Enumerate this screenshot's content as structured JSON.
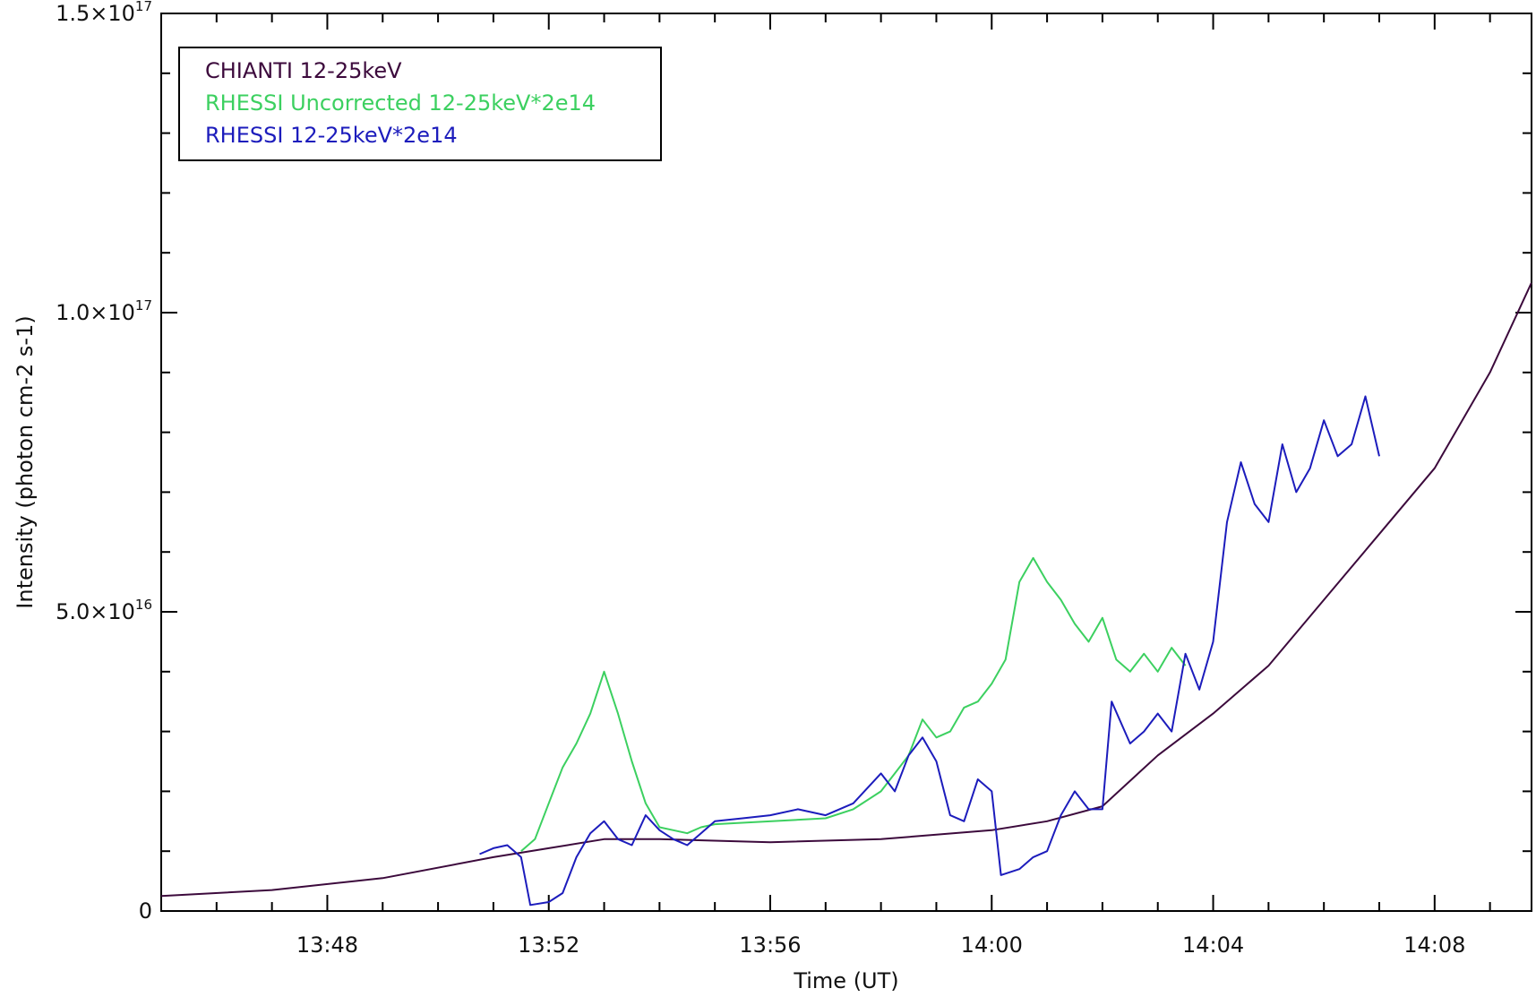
{
  "chart_data": {
    "type": "line",
    "title": "",
    "xlabel": "Time (UT)",
    "ylabel": "Intensity (photon cm-2 s-1)",
    "x_unit": "UT time (HH:MM)",
    "xlim": [
      "13:45:00",
      "14:09:45"
    ],
    "ylim": [
      0,
      1.5e+17
    ],
    "x_ticks": [
      "13:48",
      "13:52",
      "13:56",
      "14:00",
      "14:04",
      "14:08"
    ],
    "y_ticks": [
      {
        "value": 0,
        "mantissa": "0",
        "exp": ""
      },
      {
        "value": 5e+16,
        "mantissa": "5.0×10",
        "exp": "16"
      },
      {
        "value": 1e+17,
        "mantissa": "1.0×10",
        "exp": "17"
      },
      {
        "value": 1.5e+17,
        "mantissa": "1.5×10",
        "exp": "17"
      }
    ],
    "grid": false,
    "legend_position": "top-left",
    "series": [
      {
        "name": "CHIANTI 12-25keV",
        "color": "#3c0a3c",
        "x": [
          "13:45:00",
          "13:47:00",
          "13:49:00",
          "13:51:00",
          "13:52:00",
          "13:53:00",
          "13:54:00",
          "13:56:00",
          "13:58:00",
          "14:00:00",
          "14:01:00",
          "14:02:00",
          "14:03:00",
          "14:04:00",
          "14:05:00",
          "14:06:00",
          "14:07:00",
          "14:08:00",
          "14:09:00",
          "14:09:45"
        ],
        "values": [
          2500000000000000.0,
          3500000000000000.0,
          5500000000000000.0,
          9000000000000000.0,
          1.05e+16,
          1.2e+16,
          1.2e+16,
          1.15e+16,
          1.2e+16,
          1.35e+16,
          1.5e+16,
          1.75e+16,
          2.6e+16,
          3.3e+16,
          4.1e+16,
          5.2e+16,
          6.3e+16,
          7.4e+16,
          9e+16,
          1.05e+17
        ]
      },
      {
        "name": "RHESSI Uncorrected 12-25keV*2e14",
        "color": "#3cd060",
        "x": [
          "13:51:30",
          "13:51:45",
          "13:52:00",
          "13:52:15",
          "13:52:30",
          "13:52:45",
          "13:53:00",
          "13:53:15",
          "13:53:30",
          "13:53:45",
          "13:54:00",
          "13:54:15",
          "13:54:30",
          "13:54:45",
          "13:55:00",
          "13:57:00",
          "13:57:30",
          "13:58:00",
          "13:58:15",
          "13:58:30",
          "13:58:45",
          "13:59:00",
          "13:59:15",
          "13:59:30",
          "13:59:45",
          "14:00:00",
          "14:00:15",
          "14:00:30",
          "14:00:45",
          "14:01:00",
          "14:01:15",
          "14:01:30",
          "14:01:45",
          "14:02:00",
          "14:02:15",
          "14:02:30",
          "14:02:45",
          "14:03:00",
          "14:03:15",
          "14:03:30"
        ],
        "values": [
          1e+16,
          1.2e+16,
          1.8e+16,
          2.4e+16,
          2.8e+16,
          3.3e+16,
          4e+16,
          3.3e+16,
          2.5e+16,
          1.8e+16,
          1.4e+16,
          1.35e+16,
          1.3e+16,
          1.4e+16,
          1.45e+16,
          1.55e+16,
          1.7e+16,
          2e+16,
          2.3e+16,
          2.6e+16,
          3.2e+16,
          2.9e+16,
          3e+16,
          3.4e+16,
          3.5e+16,
          3.8e+16,
          4.2e+16,
          5.5e+16,
          5.9e+16,
          5.5e+16,
          5.2e+16,
          4.8e+16,
          4.5e+16,
          4.9e+16,
          4.2e+16,
          4e+16,
          4.3e+16,
          4e+16,
          4.4e+16,
          4.1e+16
        ]
      },
      {
        "name": "RHESSI 12-25keV*2e14",
        "color": "#1c1cbc",
        "x": [
          "13:50:45",
          "13:51:00",
          "13:51:15",
          "13:51:30",
          "13:51:40",
          "13:52:00",
          "13:52:15",
          "13:52:30",
          "13:52:45",
          "13:53:00",
          "13:53:15",
          "13:53:30",
          "13:53:45",
          "13:54:00",
          "13:54:15",
          "13:54:30",
          "13:54:45",
          "13:55:00",
          "13:55:30",
          "13:56:00",
          "13:56:30",
          "13:57:00",
          "13:57:30",
          "13:58:00",
          "13:58:15",
          "13:58:30",
          "13:58:45",
          "13:59:00",
          "13:59:15",
          "13:59:30",
          "13:59:45",
          "14:00:00",
          "14:00:10",
          "14:00:30",
          "14:00:45",
          "14:01:00",
          "14:01:15",
          "14:01:30",
          "14:01:45",
          "14:02:00",
          "14:02:10",
          "14:02:30",
          "14:02:45",
          "14:03:00",
          "14:03:15",
          "14:03:30",
          "14:03:45",
          "14:04:00",
          "14:04:15",
          "14:04:30",
          "14:04:45",
          "14:05:00",
          "14:05:15",
          "14:05:30",
          "14:05:45",
          "14:06:00",
          "14:06:15",
          "14:06:30",
          "14:06:45",
          "14:07:00"
        ],
        "values": [
          9500000000000000.0,
          1.05e+16,
          1.1e+16,
          9000000000000000.0,
          1000000000000000.0,
          1500000000000000.0,
          3000000000000000.0,
          9000000000000000.0,
          1.3e+16,
          1.5e+16,
          1.2e+16,
          1.1e+16,
          1.6e+16,
          1.35e+16,
          1.2e+16,
          1.1e+16,
          1.3e+16,
          1.5e+16,
          1.55e+16,
          1.6e+16,
          1.7e+16,
          1.6e+16,
          1.8e+16,
          2.3e+16,
          2e+16,
          2.6e+16,
          2.9e+16,
          2.5e+16,
          1.6e+16,
          1.5e+16,
          2.2e+16,
          2e+16,
          6000000000000000.0,
          7000000000000000.0,
          9000000000000000.0,
          1e+16,
          1.6e+16,
          2e+16,
          1.7e+16,
          1.7e+16,
          3.5e+16,
          2.8e+16,
          3e+16,
          3.3e+16,
          3e+16,
          4.3e+16,
          3.7e+16,
          4.5e+16,
          6.5e+16,
          7.5e+16,
          6.8e+16,
          6.5e+16,
          7.8e+16,
          7e+16,
          7.4e+16,
          8.2e+16,
          7.6e+16,
          7.8e+16,
          8.6e+16,
          7.6e+16
        ]
      }
    ]
  }
}
